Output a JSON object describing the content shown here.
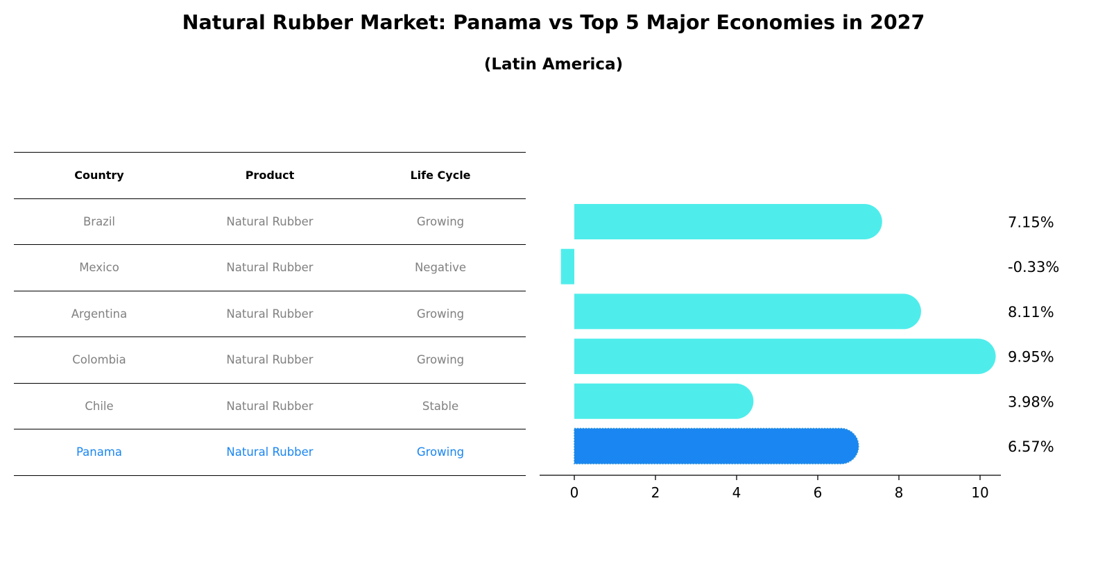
{
  "title": "Natural Rubber Market: Panama vs Top 5 Major Economies in 2027",
  "subtitle": "(Latin America)",
  "table": {
    "headers": [
      "Country",
      "Product",
      "Life Cycle"
    ],
    "rows": [
      [
        "Brazil",
        "Natural Rubber",
        "Growing"
      ],
      [
        "Mexico",
        "Natural Rubber",
        "Negative"
      ],
      [
        "Argentina",
        "Natural Rubber",
        "Growing"
      ],
      [
        "Colombia",
        "Natural Rubber",
        "Growing"
      ],
      [
        "Chile",
        "Natural Rubber",
        "Stable"
      ],
      [
        "Panama",
        "Natural Rubber",
        "Growing"
      ]
    ],
    "highlight_row": 5
  },
  "colors": {
    "bar": "#4EEDEB",
    "highlight": "#1A86F1",
    "muted_text": "#808080"
  },
  "chart_data": {
    "type": "bar",
    "orientation": "horizontal",
    "categories": [
      "Brazil",
      "Mexico",
      "Argentina",
      "Colombia",
      "Chile",
      "Panama"
    ],
    "values": [
      7.15,
      -0.33,
      8.11,
      9.95,
      3.98,
      6.57
    ],
    "value_labels": [
      "7.15%",
      "-0.33%",
      "8.11%",
      "9.95%",
      "3.98%",
      "6.57%"
    ],
    "highlight": "Panama",
    "xticks": [
      0,
      2,
      4,
      6,
      8,
      10
    ],
    "xlim": [
      -0.85,
      10.45
    ],
    "xlabel": "",
    "ylabel": ""
  }
}
